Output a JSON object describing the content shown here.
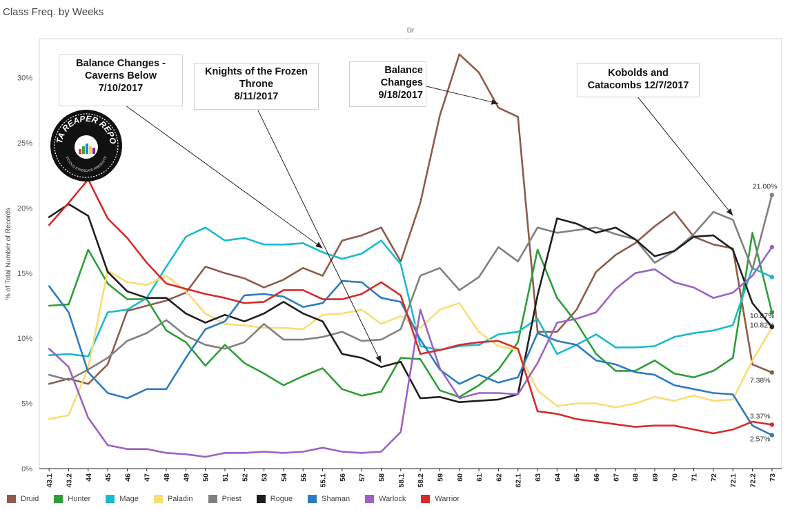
{
  "title": "Class Freq. by Weeks",
  "chart_data": {
    "type": "line",
    "column_header": "Dr",
    "ylabel": "% of Total Number of Records",
    "xlabel": "",
    "ylim": [
      0,
      33
    ],
    "yticks": [
      0,
      5,
      10,
      15,
      20,
      25,
      30
    ],
    "ytick_labels": [
      "0%",
      "5%",
      "10%",
      "15%",
      "20%",
      "25%",
      "30%"
    ],
    "grid": false,
    "legend_position": "bottom",
    "x": [
      "43.1",
      "43.2",
      "44",
      "45",
      "46",
      "47",
      "48",
      "49",
      "50",
      "51",
      "52",
      "53",
      "54",
      "55",
      "55.1",
      "56",
      "57",
      "58",
      "58.1",
      "58.2",
      "59",
      "60",
      "61",
      "62",
      "62.1",
      "63",
      "64",
      "65",
      "66",
      "67",
      "68",
      "69",
      "70",
      "71",
      "72",
      "72.1",
      "72.2",
      "73"
    ],
    "series": [
      {
        "name": "Druid",
        "color": "#8e5a4b",
        "values": [
          6.5,
          6.9,
          6.5,
          8.0,
          12.1,
          12.5,
          12.9,
          13.5,
          15.5,
          15.0,
          14.6,
          13.9,
          14.5,
          15.4,
          14.8,
          17.5,
          17.9,
          18.5,
          15.9,
          20.4,
          27.1,
          31.8,
          30.4,
          27.7,
          27.0,
          10.5,
          10.5,
          12.2,
          15.1,
          16.4,
          17.3,
          18.6,
          19.7,
          17.8,
          17.2,
          16.9,
          8.0,
          7.38
        ]
      },
      {
        "name": "Hunter",
        "color": "#2e9e36",
        "values": [
          12.5,
          12.6,
          16.8,
          14.2,
          13.0,
          13.0,
          10.6,
          9.7,
          7.9,
          9.5,
          8.1,
          7.3,
          6.4,
          7.1,
          7.7,
          6.1,
          5.6,
          5.9,
          8.5,
          8.4,
          6.0,
          5.5,
          6.4,
          7.6,
          9.7,
          16.8,
          13.1,
          11.2,
          8.8,
          7.5,
          7.5,
          8.3,
          7.3,
          7.0,
          7.5,
          8.5,
          18.1,
          12.0
        ]
      },
      {
        "name": "Mage",
        "color": "#19bacb",
        "values": [
          8.7,
          8.8,
          8.6,
          12.0,
          12.2,
          13.1,
          15.5,
          17.8,
          18.5,
          17.5,
          17.7,
          17.2,
          17.2,
          17.3,
          16.6,
          16.1,
          16.5,
          17.5,
          15.7,
          9.4,
          9.1,
          9.4,
          9.5,
          10.3,
          10.5,
          11.5,
          8.8,
          9.5,
          10.3,
          9.3,
          9.3,
          9.4,
          10.1,
          10.4,
          10.6,
          11.0,
          15.4,
          14.7
        ]
      },
      {
        "name": "Paladin",
        "color": "#f9dc73",
        "values": [
          3.8,
          4.1,
          7.7,
          15.2,
          14.3,
          14.1,
          14.8,
          13.6,
          11.9,
          11.1,
          11.0,
          10.8,
          10.8,
          10.7,
          11.8,
          11.9,
          12.2,
          11.1,
          11.7,
          10.8,
          12.2,
          12.7,
          10.5,
          9.4,
          9.1,
          6.0,
          4.8,
          5.0,
          5.0,
          4.7,
          5.0,
          5.5,
          5.2,
          5.6,
          5.2,
          5.3,
          8.3,
          10.82
        ]
      },
      {
        "name": "Priest",
        "color": "#808080",
        "values": [
          7.2,
          6.8,
          7.6,
          8.5,
          9.8,
          10.4,
          11.4,
          10.2,
          9.5,
          9.2,
          9.7,
          11.1,
          9.9,
          9.9,
          10.1,
          10.5,
          9.8,
          9.9,
          10.7,
          14.8,
          15.4,
          13.7,
          14.7,
          17.0,
          15.9,
          18.5,
          18.1,
          18.3,
          18.5,
          18.0,
          17.6,
          15.8,
          16.7,
          18.0,
          19.7,
          19.1,
          15.3,
          21.0
        ]
      },
      {
        "name": "Rogue",
        "color": "#1e1e1e",
        "values": [
          19.3,
          20.3,
          19.4,
          15.1,
          13.6,
          13.1,
          13.1,
          11.9,
          11.2,
          11.8,
          11.3,
          11.9,
          12.8,
          11.9,
          11.3,
          8.8,
          8.5,
          7.8,
          8.2,
          5.4,
          5.5,
          5.1,
          5.2,
          5.3,
          5.7,
          13.3,
          19.2,
          18.8,
          18.1,
          18.5,
          17.6,
          16.3,
          16.7,
          17.8,
          17.9,
          16.8,
          12.7,
          10.87
        ]
      },
      {
        "name": "Shaman",
        "color": "#2c7cbf",
        "values": [
          14.0,
          12.0,
          7.4,
          5.8,
          5.4,
          6.1,
          6.1,
          8.5,
          10.7,
          11.3,
          13.3,
          13.4,
          13.2,
          12.4,
          12.7,
          14.4,
          14.3,
          13.1,
          12.8,
          9.9,
          7.6,
          6.5,
          7.2,
          6.6,
          7.0,
          10.4,
          9.8,
          9.5,
          8.3,
          8.0,
          7.4,
          7.2,
          6.4,
          6.1,
          5.8,
          5.7,
          3.3,
          2.57
        ]
      },
      {
        "name": "Warlock",
        "color": "#9a63c4",
        "values": [
          9.2,
          7.8,
          3.9,
          1.8,
          1.5,
          1.5,
          1.2,
          1.1,
          0.9,
          1.2,
          1.2,
          1.3,
          1.2,
          1.3,
          1.6,
          1.3,
          1.2,
          1.3,
          2.8,
          12.2,
          7.7,
          5.4,
          5.8,
          5.8,
          5.7,
          8.1,
          11.2,
          11.5,
          12.0,
          13.8,
          15.0,
          15.3,
          14.3,
          13.9,
          13.1,
          13.5,
          14.8,
          17.0
        ]
      },
      {
        "name": "Warrior",
        "color": "#d62b2b",
        "values": [
          18.7,
          20.4,
          22.2,
          19.2,
          17.7,
          15.8,
          14.2,
          13.8,
          13.4,
          13.1,
          12.7,
          12.8,
          13.7,
          13.7,
          13.0,
          13.0,
          13.4,
          14.3,
          13.3,
          8.8,
          9.1,
          9.5,
          9.7,
          9.8,
          9.2,
          4.4,
          4.2,
          3.8,
          3.6,
          3.4,
          3.2,
          3.3,
          3.3,
          3.0,
          2.7,
          3.0,
          3.6,
          3.37
        ]
      }
    ],
    "end_labels": [
      {
        "series": "Priest",
        "text": "21.00%"
      },
      {
        "series": "Rogue",
        "text": "10.87%"
      },
      {
        "series": "Paladin",
        "text": "10.82%"
      },
      {
        "series": "Druid",
        "text": "7.38%"
      },
      {
        "series": "Warrior",
        "text": "3.37%"
      },
      {
        "series": "Shaman",
        "text": "2.57%"
      }
    ],
    "annotations": [
      {
        "text": "Balance Changes - Caverns Below 7/10/2017",
        "lines": [
          "Balance Changes -",
          "Caverns Below",
          "7/10/2017"
        ],
        "target_x": "55.1",
        "target_series": "Mage"
      },
      {
        "text": "Knights of the Frozen Throne 8/11/2017",
        "lines": [
          "Knights of the Frozen",
          "Throne",
          "8/11/2017"
        ],
        "target_x": "58",
        "target_series": "Rogue"
      },
      {
        "text": "Balance Changes 9/18/2017",
        "lines": [
          "Balance",
          "Changes",
          "9/18/2017"
        ],
        "target_x": "62",
        "target_series": "Druid"
      },
      {
        "text": "Kobolds and Catacombs 12/7/2017",
        "lines": [
          "Kobolds and",
          "Catacombs 12/7/2017"
        ],
        "target_x": "72.1",
        "target_series": "Priest"
      }
    ]
  },
  "logo": {
    "text": "DATA REAPER REPORT",
    "subtext": "VICIOUS SYNDICATE PRESENTS"
  }
}
